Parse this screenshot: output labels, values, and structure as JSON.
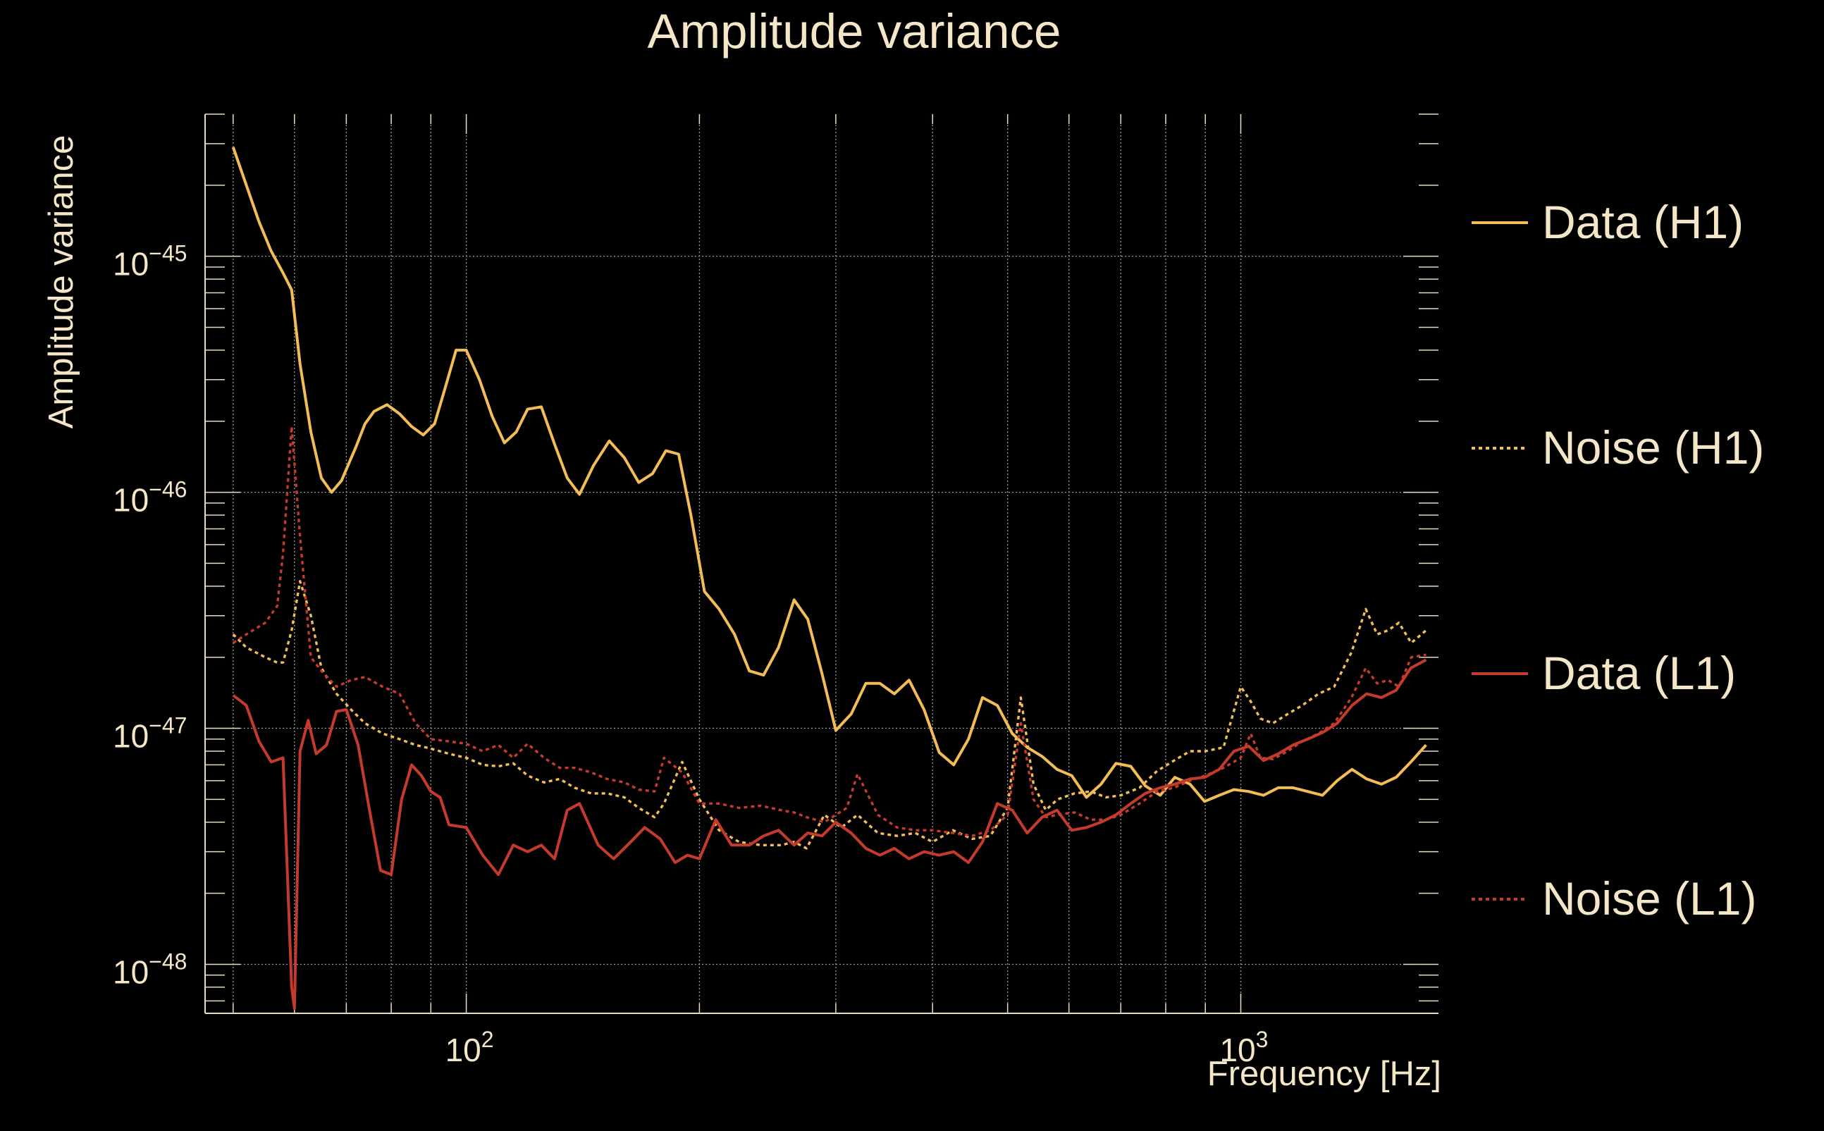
{
  "chart_data": {
    "type": "line",
    "title": "Amplitude variance",
    "xlabel": "Frequency [Hz]",
    "ylabel": "Amplitude variance",
    "x_scale": "log",
    "y_scale": "log",
    "xlim": [
      46.0,
      1800.0
    ],
    "ylim": [
      6.2e-49,
      4e-45
    ],
    "x_ticks": [
      {
        "value": 100,
        "base": "10",
        "exp": "2"
      },
      {
        "value": 1000,
        "base": "10",
        "exp": "3"
      }
    ],
    "y_ticks": [
      {
        "value": 1e-45,
        "base": "10",
        "exp": "−45"
      },
      {
        "value": 1e-46,
        "base": "10",
        "exp": "−46"
      },
      {
        "value": 1e-47,
        "base": "10",
        "exp": "−47"
      },
      {
        "value": 1e-48,
        "base": "10",
        "exp": "−48"
      }
    ],
    "grid": true,
    "legend_position": "right",
    "colors": {
      "background": "#000000",
      "text": "#f5e6c8",
      "axis": "#e8dcc0",
      "grid": "#9a9a9a",
      "h1": "#f2bc57",
      "l1": "#c43b2d"
    },
    "series": [
      {
        "name": "Data (H1)",
        "color": "#f2bc57",
        "style": "solid",
        "x": [
          50,
          52,
          54,
          56,
          58,
          59.5,
          61,
          63,
          65,
          67,
          69,
          72,
          74,
          76,
          79,
          82,
          85,
          88,
          91,
          94,
          97,
          100,
          104,
          108,
          112,
          116,
          120,
          125,
          130,
          135,
          140,
          146,
          153,
          160,
          167,
          174,
          181,
          188,
          195,
          203,
          212,
          222,
          232,
          242,
          253,
          265,
          276,
          288,
          300,
          314,
          328,
          342,
          357,
          373,
          390,
          408,
          426,
          445,
          464,
          485,
          507,
          530,
          554,
          579,
          605,
          632,
          660,
          690,
          721,
          753,
          787,
          822,
          860,
          898,
          938,
          980,
          1024,
          1070,
          1118,
          1168,
          1220,
          1275,
          1332,
          1392,
          1454,
          1519,
          1587,
          1658,
          1735
        ],
        "y": [
          2.9e-45,
          2e-45,
          1.4e-45,
          1.05e-45,
          8.5e-46,
          7.2e-46,
          3.5e-46,
          1.8e-46,
          1.15e-46,
          1e-46,
          1.12e-46,
          1.55e-46,
          1.95e-46,
          2.2e-46,
          2.35e-46,
          2.15e-46,
          1.9e-46,
          1.75e-46,
          1.95e-46,
          2.8e-46,
          4e-46,
          4e-46,
          3e-46,
          2.1e-46,
          1.62e-46,
          1.8e-46,
          2.25e-46,
          2.3e-46,
          1.6e-46,
          1.15e-46,
          9.8e-47,
          1.3e-46,
          1.65e-46,
          1.4e-46,
          1.1e-46,
          1.2e-46,
          1.5e-46,
          1.45e-46,
          8e-47,
          3.8e-47,
          3.2e-47,
          2.5e-47,
          1.75e-47,
          1.68e-47,
          2.2e-47,
          3.5e-47,
          2.9e-47,
          1.7e-47,
          9.8e-48,
          1.15e-47,
          1.55e-47,
          1.55e-47,
          1.4e-47,
          1.6e-47,
          1.2e-47,
          7.9e-48,
          7e-48,
          9e-48,
          1.35e-47,
          1.25e-47,
          9.5e-48,
          8.3e-48,
          7.6e-48,
          6.7e-48,
          6.3e-48,
          5.1e-48,
          5.8e-48,
          7.1e-48,
          6.9e-48,
          5.7e-48,
          5.2e-48,
          6.2e-48,
          5.8e-48,
          4.9e-48,
          5.2e-48,
          5.5e-48,
          5.4e-48,
          5.2e-48,
          5.6e-48,
          5.6e-48,
          5.4e-48,
          5.2e-48,
          6e-48,
          6.7e-48,
          6.1e-48,
          5.8e-48,
          6.2e-48,
          7.2e-48,
          8.5e-48
        ]
      },
      {
        "name": "Noise (H1)",
        "color": "#f2bc57",
        "style": "dotted",
        "x": [
          50,
          52,
          55,
          57,
          58,
          59.5,
          61,
          63,
          65,
          68,
          71,
          74,
          78,
          82,
          86,
          90,
          95,
          100,
          105,
          110,
          115,
          120,
          126,
          132,
          138,
          145,
          152,
          160,
          167,
          175,
          180,
          190,
          200,
          212,
          225,
          240,
          255,
          265,
          275,
          290,
          305,
          320,
          340,
          360,
          380,
          400,
          425,
          450,
          475,
          500,
          520,
          540,
          560,
          580,
          610,
          640,
          670,
          700,
          740,
          780,
          820,
          860,
          900,
          950,
          1000,
          1030,
          1060,
          1100,
          1150,
          1200,
          1260,
          1320,
          1390,
          1450,
          1500,
          1550,
          1600,
          1660,
          1735
        ],
        "y": [
          2.5e-47,
          2.2e-47,
          2e-47,
          1.9e-47,
          1.9e-47,
          2.6e-47,
          4.2e-47,
          3e-47,
          1.8e-47,
          1.4e-47,
          1.2e-47,
          1.05e-47,
          9.5e-48,
          9e-48,
          8.5e-48,
          8.2e-48,
          7.8e-48,
          7.5e-48,
          7e-48,
          6.9e-48,
          7.1e-48,
          6.3e-48,
          5.9e-48,
          6.1e-48,
          5.6e-48,
          5.3e-48,
          5.3e-48,
          5.1e-48,
          4.6e-48,
          4.2e-48,
          4.8e-48,
          7.2e-48,
          5e-48,
          3.7e-48,
          3.3e-48,
          3.2e-48,
          3.2e-48,
          3.3e-48,
          3.1e-48,
          4.3e-48,
          3.8e-48,
          4.3e-48,
          3.6e-48,
          3.5e-48,
          3.6e-48,
          3.3e-48,
          3.7e-48,
          3.4e-48,
          3.5e-48,
          4.6e-48,
          1.35e-47,
          5.8e-48,
          4.5e-48,
          5e-48,
          5.3e-48,
          5.4e-48,
          5.1e-48,
          5.2e-48,
          5.6e-48,
          6.6e-48,
          7.3e-48,
          8e-48,
          8e-48,
          8.3e-48,
          1.5e-47,
          1.3e-47,
          1.1e-47,
          1.05e-47,
          1.15e-47,
          1.25e-47,
          1.4e-47,
          1.5e-47,
          2.1e-47,
          3.2e-47,
          2.5e-47,
          2.6e-47,
          2.8e-47,
          2.3e-47,
          2.6e-47
        ]
      },
      {
        "name": "Data (L1)",
        "color": "#c43b2d",
        "style": "solid",
        "x": [
          50,
          52,
          54,
          56,
          58,
          59.5,
          60,
          61,
          62.5,
          64,
          66,
          68,
          70,
          72.5,
          75,
          77.5,
          80,
          82.5,
          85,
          87.5,
          90,
          92.5,
          95,
          100,
          105,
          110,
          115,
          120,
          125,
          130,
          135,
          140,
          148,
          155,
          163,
          170,
          178,
          186,
          193,
          200,
          210,
          220,
          232,
          242,
          253,
          265,
          276,
          288,
          300,
          314,
          328,
          342,
          357,
          373,
          390,
          408,
          426,
          445,
          464,
          485,
          507,
          530,
          554,
          579,
          605,
          632,
          660,
          690,
          721,
          753,
          787,
          822,
          860,
          898,
          938,
          980,
          1024,
          1070,
          1118,
          1168,
          1220,
          1275,
          1332,
          1392,
          1454,
          1519,
          1587,
          1658,
          1735
        ],
        "y": [
          1.38e-47,
          1.25e-47,
          8.8e-48,
          7.2e-48,
          7.5e-48,
          8e-49,
          6.5e-49,
          8e-48,
          1.08e-47,
          7.8e-48,
          8.5e-48,
          1.18e-47,
          1.2e-47,
          8.5e-48,
          4.5e-48,
          2.5e-48,
          2.4e-48,
          5e-48,
          7e-48,
          6.3e-48,
          5.4e-48,
          5.1e-48,
          3.9e-48,
          3.8e-48,
          2.9e-48,
          2.4e-48,
          3.2e-48,
          3e-48,
          3.2e-48,
          2.8e-48,
          4.5e-48,
          4.8e-48,
          3.2e-48,
          2.8e-48,
          3.3e-48,
          3.8e-48,
          3.4e-48,
          2.7e-48,
          2.9e-48,
          2.8e-48,
          4.1e-48,
          3.2e-48,
          3.2e-48,
          3.5e-48,
          3.7e-48,
          3.2e-48,
          3.6e-48,
          3.5e-48,
          4e-48,
          3.6e-48,
          3.1e-48,
          2.9e-48,
          3.1e-48,
          2.8e-48,
          3e-48,
          2.9e-48,
          3e-48,
          2.7e-48,
          3.3e-48,
          4.8e-48,
          4.5e-48,
          3.6e-48,
          4.2e-48,
          4.5e-48,
          3.7e-48,
          3.8e-48,
          4e-48,
          4.3e-48,
          4.8e-48,
          5.3e-48,
          5.6e-48,
          5.8e-48,
          6.1e-48,
          6.2e-48,
          6.7e-48,
          8e-48,
          8.4e-48,
          7.3e-48,
          7.8e-48,
          8.5e-48,
          9e-48,
          9.6e-48,
          1.05e-47,
          1.25e-47,
          1.4e-47,
          1.35e-47,
          1.45e-47,
          1.8e-47,
          1.95e-47
        ]
      },
      {
        "name": "Noise (L1)",
        "color": "#c43b2d",
        "style": "dotted",
        "x": [
          50,
          52,
          55,
          57,
          58,
          59.5,
          61,
          63,
          65,
          68,
          71,
          74,
          78,
          82,
          86,
          90,
          95,
          100,
          105,
          110,
          115,
          120,
          126,
          132,
          138,
          145,
          152,
          160,
          167,
          175,
          180,
          190,
          200,
          212,
          225,
          240,
          255,
          265,
          275,
          290,
          300,
          310,
          320,
          340,
          360,
          380,
          400,
          425,
          450,
          475,
          500,
          520,
          540,
          560,
          580,
          610,
          640,
          670,
          700,
          740,
          780,
          820,
          860,
          900,
          950,
          1000,
          1030,
          1060,
          1100,
          1150,
          1200,
          1260,
          1320,
          1390,
          1450,
          1500,
          1550,
          1600,
          1660,
          1735
        ],
        "y": [
          2.3e-47,
          2.5e-47,
          2.8e-47,
          3.3e-47,
          5.5e-47,
          1.9e-46,
          6.5e-47,
          2e-47,
          1.75e-47,
          1.5e-47,
          1.6e-47,
          1.65e-47,
          1.5e-47,
          1.4e-47,
          1.05e-47,
          9e-48,
          8.8e-48,
          8.6e-48,
          8e-48,
          8.5e-48,
          7.5e-48,
          8.6e-48,
          7.5e-48,
          6.8e-48,
          6.8e-48,
          6.5e-48,
          6.1e-48,
          5.9e-48,
          5.5e-48,
          5.4e-48,
          7.5e-48,
          6.5e-48,
          4.8e-48,
          4.8e-48,
          4.6e-48,
          4.7e-48,
          4.5e-48,
          4.4e-48,
          4.2e-48,
          4e-48,
          4.3e-48,
          4.6e-48,
          6.4e-48,
          4.3e-48,
          3.8e-48,
          3.7e-48,
          3.7e-48,
          3.6e-48,
          3.5e-48,
          3.7e-48,
          4.3e-48,
          1.05e-47,
          5e-48,
          4.2e-48,
          4.3e-48,
          4.4e-48,
          4.1e-48,
          4.1e-48,
          4.3e-48,
          4.8e-48,
          5.4e-48,
          5.6e-48,
          6e-48,
          6.3e-48,
          6.8e-48,
          7.5e-48,
          9.5e-48,
          7.5e-48,
          7.4e-48,
          8e-48,
          8.8e-48,
          9.5e-48,
          1.05e-47,
          1.35e-47,
          1.8e-47,
          1.55e-47,
          1.6e-47,
          1.5e-47,
          2e-47,
          2.05e-47
        ]
      }
    ]
  }
}
